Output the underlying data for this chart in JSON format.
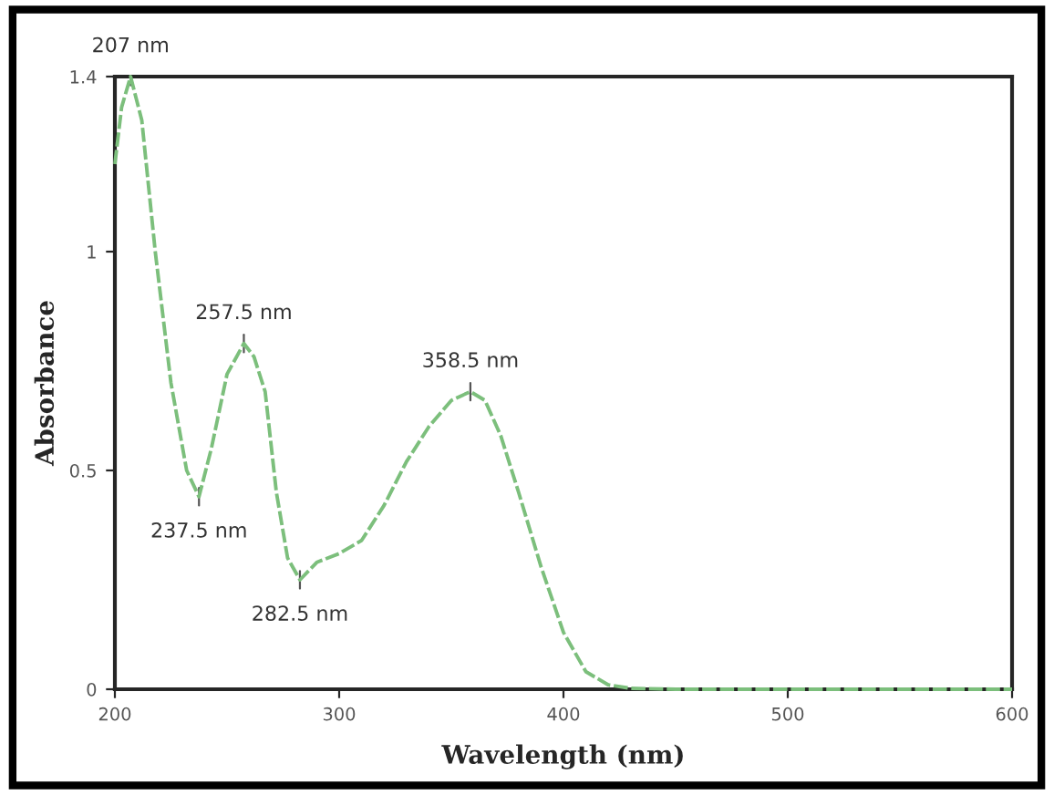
{
  "chart_data": {
    "type": "line",
    "xlabel": "Wavelength (nm)",
    "ylabel": "Absorbance",
    "x": [
      200,
      203,
      207,
      212,
      218,
      225,
      232,
      237.5,
      243,
      250,
      257.5,
      262,
      267,
      272,
      277,
      282.5,
      290,
      300,
      310,
      320,
      330,
      340,
      350,
      358.5,
      365,
      372,
      380,
      390,
      400,
      410,
      420,
      430,
      450,
      500,
      550,
      600
    ],
    "series": [
      {
        "color": "#7cbf7c",
        "values": [
          1.2,
          1.33,
          1.4,
          1.3,
          1.0,
          0.7,
          0.5,
          0.44,
          0.55,
          0.72,
          0.79,
          0.76,
          0.68,
          0.45,
          0.3,
          0.25,
          0.29,
          0.31,
          0.34,
          0.42,
          0.52,
          0.6,
          0.66,
          0.68,
          0.66,
          0.58,
          0.45,
          0.28,
          0.13,
          0.04,
          0.01,
          0.002,
          0,
          0,
          0,
          0
        ]
      }
    ],
    "xlim": [
      200,
      600
    ],
    "xticks": [
      200,
      300,
      400,
      500,
      600
    ],
    "ylim": [
      0,
      1.4
    ],
    "yticks": [
      0,
      0.5,
      1,
      1.4
    ],
    "annotations": [
      {
        "text": "207 nm",
        "x": 207,
        "y": 1.4
      },
      {
        "text": "237.5 nm",
        "x": 237.5,
        "y": 0.44
      },
      {
        "text": "257.5 nm",
        "x": 257.5,
        "y": 0.79
      },
      {
        "text": "282.5 nm",
        "x": 282.5,
        "y": 0.25
      },
      {
        "text": "358.5 nm",
        "x": 358.5,
        "y": 0.68
      }
    ],
    "grid": false,
    "marker": "none",
    "line_style": "dashed"
  }
}
